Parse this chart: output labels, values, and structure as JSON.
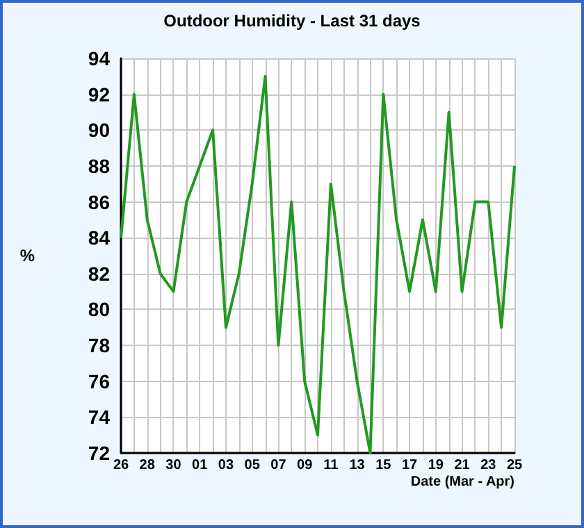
{
  "chart_data": {
    "type": "line",
    "title": "Outdoor Humidity - Last 31 days",
    "xlabel": "Date (Mar - Apr)",
    "ylabel": "%",
    "categories": [
      "26",
      null,
      "28",
      null,
      "30",
      null,
      "01",
      null,
      "03",
      null,
      "05",
      null,
      "07",
      null,
      "09",
      null,
      "11",
      null,
      "13",
      null,
      "15",
      null,
      "17",
      null,
      "19",
      null,
      "21",
      null,
      "23",
      null,
      "25"
    ],
    "series": [
      {
        "color": "#229922",
        "values": [
          84,
          92,
          85,
          82,
          81,
          86,
          88,
          90,
          79,
          82,
          87,
          93,
          78,
          86,
          76,
          73,
          87,
          81,
          76,
          72,
          92,
          85,
          81,
          85,
          81,
          91,
          81,
          86,
          86,
          79,
          88
        ]
      }
    ],
    "ylim": [
      72,
      94
    ],
    "yticks": [
      72,
      74,
      76,
      78,
      80,
      82,
      84,
      86,
      88,
      90,
      92,
      94
    ],
    "grid": true,
    "marker": "none",
    "line_style": "solid"
  }
}
